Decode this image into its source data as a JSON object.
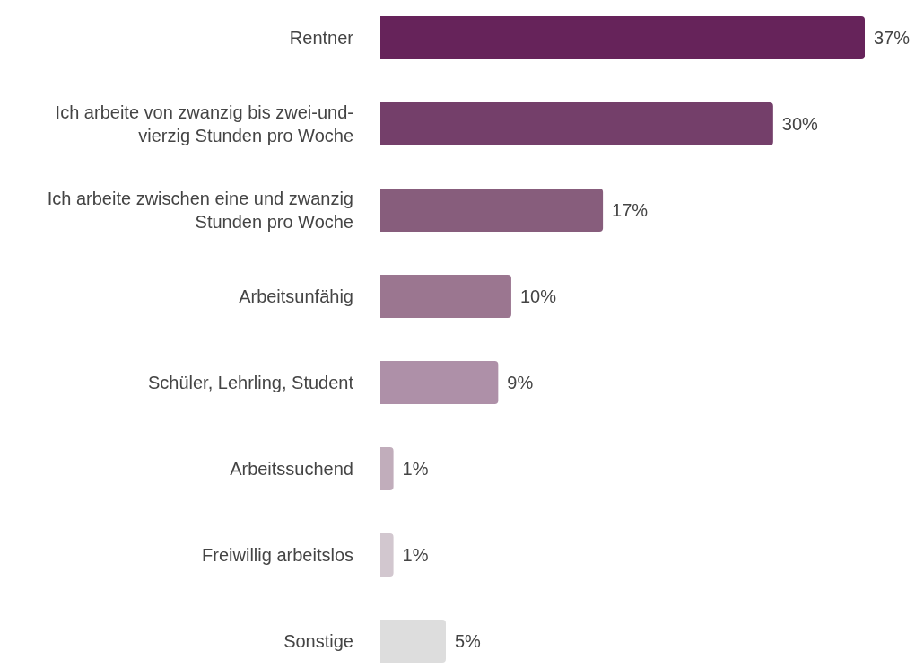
{
  "chart_data": {
    "type": "bar",
    "orientation": "horizontal",
    "categories": [
      "Rentner",
      "Ich arbeite von zwanzig bis zwei-und-vierzig Stunden pro Woche",
      "Ich arbeite zwischen eine und zwanzig Stunden pro Woche",
      "Arbeitsunfähig",
      "Schüler, Lehrling, Student",
      "Arbeitssuchend",
      "Freiwillig arbeitslos",
      "Sonstige"
    ],
    "values": [
      37,
      30,
      17,
      10,
      9,
      1,
      1,
      5
    ],
    "colors": [
      "#66235a",
      "#743f6a",
      "#875d7c",
      "#9b7690",
      "#ae90a8",
      "#c1adbb",
      "#d2c7cf",
      "#dddddd"
    ],
    "value_labels": [
      "37%",
      "30%",
      "17%",
      "10%",
      "9%",
      "1%",
      "1%",
      "5%"
    ],
    "xlim": [
      0,
      37
    ]
  }
}
